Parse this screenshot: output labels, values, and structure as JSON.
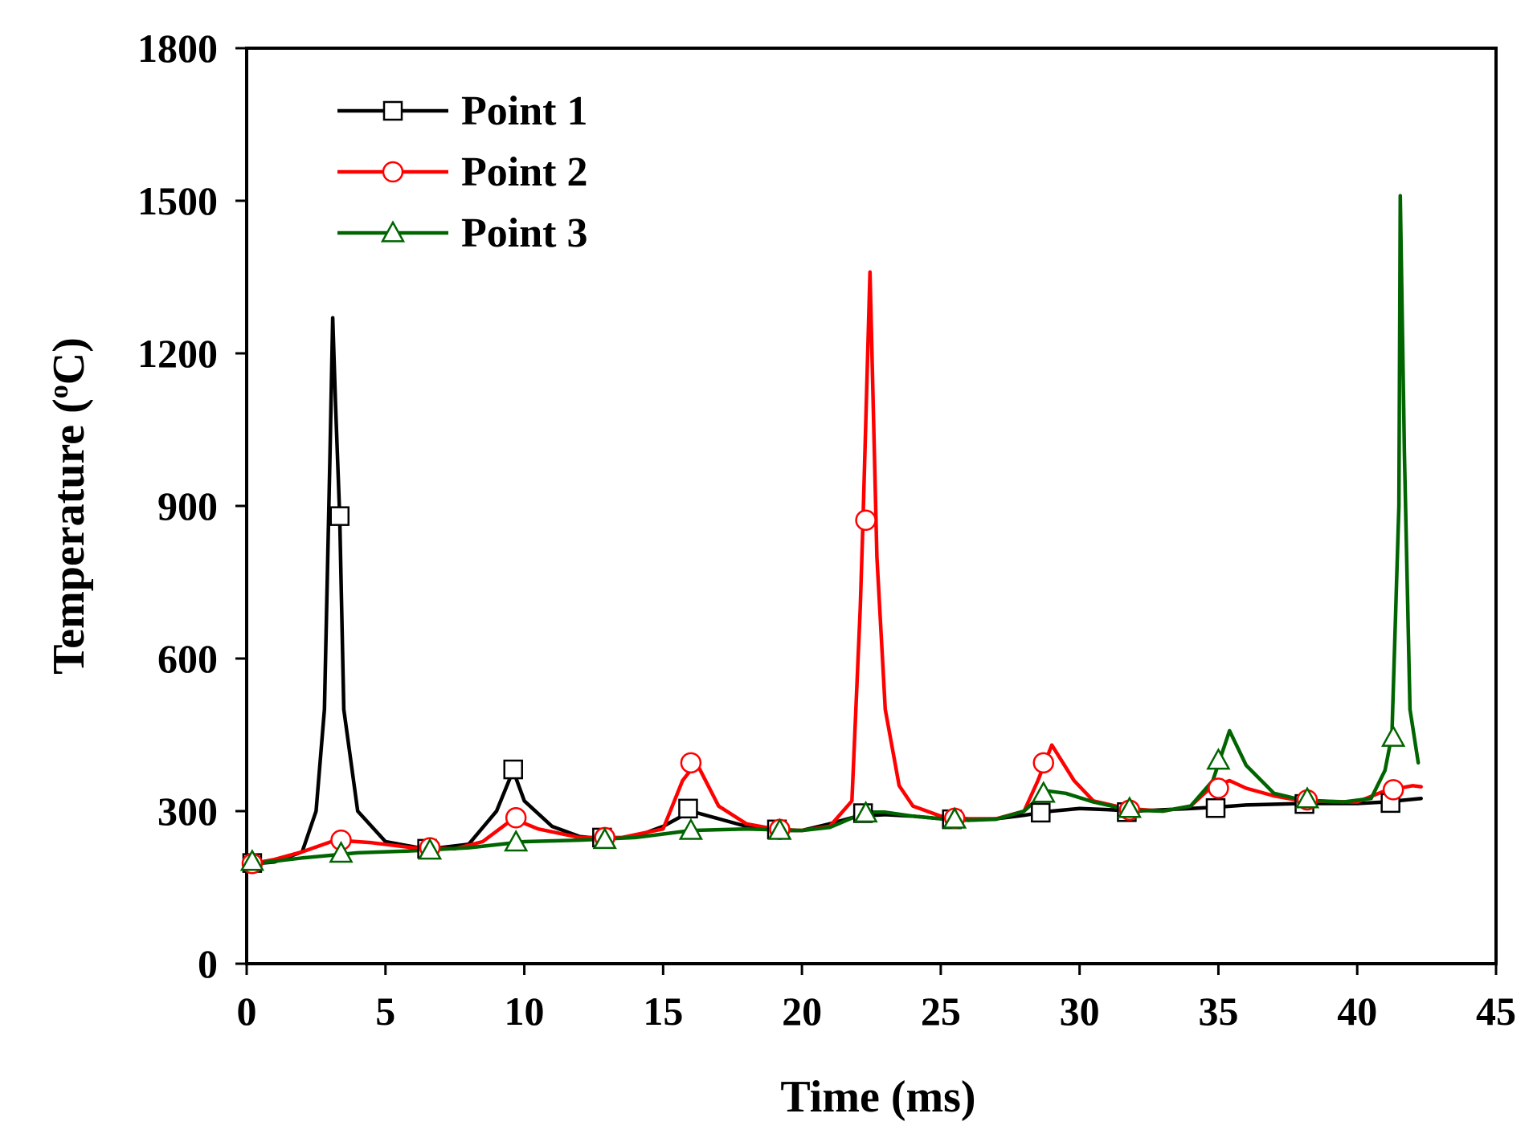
{
  "chart_data": {
    "type": "line",
    "title": "",
    "xlabel": "Time (ms)",
    "ylabel_main": "Temperature (",
    "ylabel_sup": "o",
    "ylabel_end": "C)",
    "xlim": [
      0,
      45
    ],
    "ylim": [
      0,
      1800
    ],
    "xticks": [
      0,
      5,
      10,
      15,
      20,
      25,
      30,
      35,
      40,
      45
    ],
    "yticks": [
      0,
      300,
      600,
      900,
      1200,
      1500,
      1800
    ],
    "xtick_labels": [
      "0",
      "5",
      "10",
      "15",
      "20",
      "25",
      "30",
      "35",
      "40",
      "45"
    ],
    "ytick_labels": [
      "0",
      "300",
      "600",
      "900",
      "1200",
      "1500",
      "1800"
    ],
    "legend_position": "top-left",
    "series": [
      {
        "name": "Point 1",
        "color": "#000000",
        "marker": "square",
        "line": [
          [
            0,
            195
          ],
          [
            1,
            200
          ],
          [
            2,
            220
          ],
          [
            2.5,
            300
          ],
          [
            2.8,
            500
          ],
          [
            3.0,
            1000
          ],
          [
            3.1,
            1270
          ],
          [
            3.2,
            1100
          ],
          [
            3.35,
            880
          ],
          [
            3.5,
            500
          ],
          [
            4,
            300
          ],
          [
            5,
            240
          ],
          [
            6.5,
            225
          ],
          [
            8,
            235
          ],
          [
            9,
            300
          ],
          [
            9.6,
            380
          ],
          [
            10,
            320
          ],
          [
            11,
            270
          ],
          [
            12,
            250
          ],
          [
            13,
            245
          ],
          [
            14,
            250
          ],
          [
            15,
            270
          ],
          [
            16,
            300
          ],
          [
            17,
            285
          ],
          [
            18,
            270
          ],
          [
            19,
            262
          ],
          [
            20,
            262
          ],
          [
            21,
            275
          ],
          [
            22,
            290
          ],
          [
            23,
            293
          ],
          [
            24,
            290
          ],
          [
            25,
            285
          ],
          [
            26,
            282
          ],
          [
            27,
            285
          ],
          [
            28,
            292
          ],
          [
            29,
            300
          ],
          [
            30,
            305
          ],
          [
            31,
            303
          ],
          [
            32,
            300
          ],
          [
            34,
            305
          ],
          [
            35,
            308
          ],
          [
            36,
            312
          ],
          [
            38,
            315
          ],
          [
            40,
            315
          ],
          [
            41,
            318
          ],
          [
            42.3,
            325
          ]
        ],
        "markers": [
          [
            0.2,
            198
          ],
          [
            3.35,
            880
          ],
          [
            6.5,
            226
          ],
          [
            9.6,
            382
          ],
          [
            12.8,
            248
          ],
          [
            15.9,
            305
          ],
          [
            19.1,
            264
          ],
          [
            22.2,
            296
          ],
          [
            25.4,
            284
          ],
          [
            28.6,
            297
          ],
          [
            31.7,
            298
          ],
          [
            34.9,
            306
          ],
          [
            38.1,
            314
          ],
          [
            41.2,
            316
          ]
        ]
      },
      {
        "name": "Point 2",
        "color": "#ff0000",
        "marker": "circle",
        "line": [
          [
            0,
            195
          ],
          [
            1,
            205
          ],
          [
            2,
            220
          ],
          [
            3.2,
            243
          ],
          [
            4.5,
            238
          ],
          [
            6,
            228
          ],
          [
            7.5,
            226
          ],
          [
            8.5,
            240
          ],
          [
            9.6,
            285
          ],
          [
            10.5,
            265
          ],
          [
            12,
            248
          ],
          [
            13.5,
            248
          ],
          [
            15,
            265
          ],
          [
            15.7,
            360
          ],
          [
            16.2,
            395
          ],
          [
            17,
            310
          ],
          [
            18,
            275
          ],
          [
            19,
            265
          ],
          [
            20,
            262
          ],
          [
            21,
            270
          ],
          [
            21.8,
            320
          ],
          [
            22.1,
            700
          ],
          [
            22.2,
            870
          ],
          [
            22.45,
            1360
          ],
          [
            22.7,
            800
          ],
          [
            23,
            500
          ],
          [
            23.5,
            350
          ],
          [
            24,
            310
          ],
          [
            25,
            290
          ],
          [
            26,
            285
          ],
          [
            27,
            285
          ],
          [
            28,
            300
          ],
          [
            28.5,
            360
          ],
          [
            29,
            430
          ],
          [
            29.8,
            360
          ],
          [
            30.5,
            320
          ],
          [
            31.7,
            305
          ],
          [
            33,
            300
          ],
          [
            34,
            310
          ],
          [
            34.7,
            345
          ],
          [
            35.4,
            360
          ],
          [
            36,
            345
          ],
          [
            37,
            330
          ],
          [
            38,
            320
          ],
          [
            40,
            318
          ],
          [
            41,
            340
          ],
          [
            42,
            350
          ],
          [
            42.3,
            348
          ]
        ],
        "markers": [
          [
            0.2,
            197
          ],
          [
            3.4,
            243
          ],
          [
            6.6,
            228
          ],
          [
            9.7,
            287
          ],
          [
            12.9,
            248
          ],
          [
            16.0,
            395
          ],
          [
            19.2,
            264
          ],
          [
            22.3,
            872
          ],
          [
            25.5,
            286
          ],
          [
            28.7,
            395
          ],
          [
            31.8,
            302
          ],
          [
            35.0,
            345
          ],
          [
            38.2,
            322
          ],
          [
            41.3,
            342
          ]
        ]
      },
      {
        "name": "Point 3",
        "color": "#006400",
        "marker": "triangle",
        "line": [
          [
            0,
            195
          ],
          [
            2,
            208
          ],
          [
            4,
            218
          ],
          [
            6,
            222
          ],
          [
            8,
            228
          ],
          [
            10,
            240
          ],
          [
            12,
            243
          ],
          [
            14,
            248
          ],
          [
            16,
            262
          ],
          [
            18,
            265
          ],
          [
            20,
            262
          ],
          [
            21,
            268
          ],
          [
            22.3,
            298
          ],
          [
            23,
            298
          ],
          [
            24,
            290
          ],
          [
            25,
            285
          ],
          [
            26,
            282
          ],
          [
            27,
            284
          ],
          [
            28,
            300
          ],
          [
            28.8,
            340
          ],
          [
            29.5,
            335
          ],
          [
            30.5,
            318
          ],
          [
            31.8,
            302
          ],
          [
            33,
            300
          ],
          [
            34,
            310
          ],
          [
            34.8,
            360
          ],
          [
            35.4,
            458
          ],
          [
            36,
            390
          ],
          [
            37,
            335
          ],
          [
            38,
            322
          ],
          [
            39.5,
            318
          ],
          [
            40.5,
            325
          ],
          [
            41,
            380
          ],
          [
            41.25,
            450
          ],
          [
            41.5,
            900
          ],
          [
            41.55,
            1510
          ],
          [
            41.7,
            1000
          ],
          [
            41.9,
            500
          ],
          [
            42.2,
            395
          ]
        ],
        "markers": [
          [
            0.2,
            201
          ],
          [
            3.4,
            217
          ],
          [
            6.6,
            223
          ],
          [
            9.7,
            239
          ],
          [
            12.9,
            244
          ],
          [
            16.0,
            262
          ],
          [
            19.2,
            262
          ],
          [
            22.3,
            296
          ],
          [
            25.5,
            284
          ],
          [
            28.7,
            335
          ],
          [
            31.8,
            305
          ],
          [
            35.0,
            400
          ],
          [
            38.2,
            324
          ],
          [
            41.3,
            445
          ]
        ]
      }
    ]
  }
}
